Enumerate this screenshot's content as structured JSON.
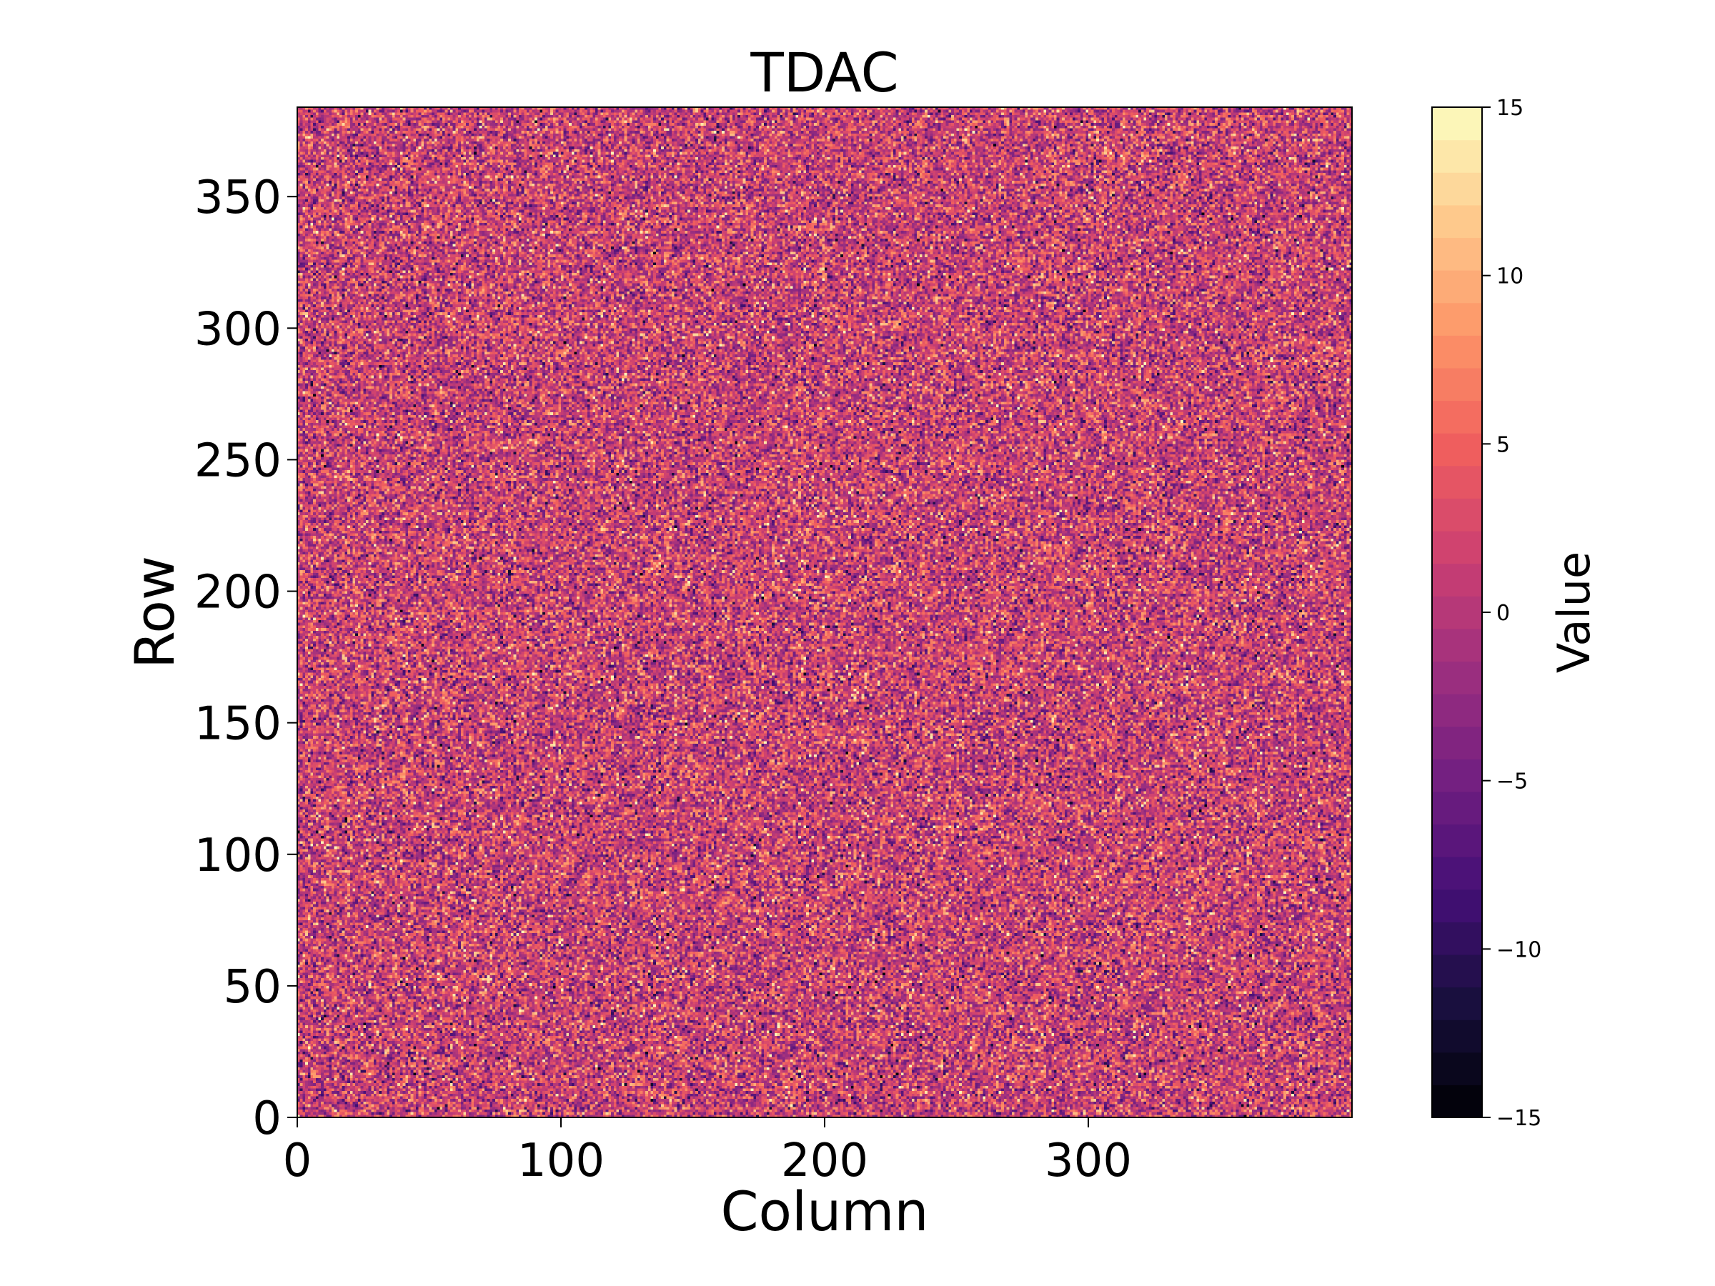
{
  "chart_data": {
    "type": "heatmap",
    "title": "TDAC",
    "xlabel": "Column",
    "ylabel": "Row",
    "colorbar_label": "Value",
    "colormap": "magma",
    "n_levels": 31,
    "grid": false,
    "columns": 400,
    "rows": 384,
    "xlim": [
      0,
      400
    ],
    "ylim": [
      0,
      384
    ],
    "x_ticks": [
      0,
      100,
      200,
      300
    ],
    "y_ticks": [
      0,
      50,
      100,
      150,
      200,
      250,
      300,
      350
    ],
    "colorbar_range": [
      -15,
      15
    ],
    "colorbar_ticks": [
      -15,
      -10,
      -5,
      0,
      5,
      10,
      15
    ],
    "value_distribution": {
      "mean": 1.5,
      "std": 4.8,
      "min": -15,
      "max": 15
    },
    "colormap_stops": [
      "#000004",
      "#180f3d",
      "#440f76",
      "#721f81",
      "#9e2f7f",
      "#cd4071",
      "#f1605d",
      "#fd9668",
      "#feca8d",
      "#fcfdbf"
    ]
  }
}
